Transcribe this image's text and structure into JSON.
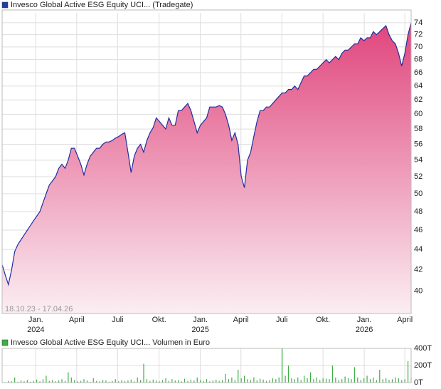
{
  "chart_data": [
    {
      "type": "area-line",
      "title": "Invesco Global Active ESG Equity UCI... (Tradegate)",
      "date_range": "18.10.23 - 17.04.26",
      "log_scale": true,
      "grid": true,
      "xlim": [
        0,
        130
      ],
      "ylim": [
        38,
        75.7
      ],
      "yticks": [
        40,
        42,
        44,
        46,
        48,
        50,
        52,
        54,
        56,
        58,
        60,
        62,
        64,
        66,
        68,
        70,
        72,
        74
      ],
      "xticks": [
        {
          "value": 10.7,
          "label": "Jan.",
          "sublabel": "2024"
        },
        {
          "value": 23.7,
          "label": "April"
        },
        {
          "value": 36.7,
          "label": "Juli"
        },
        {
          "value": 49.9,
          "label": "Okt."
        },
        {
          "value": 63.0,
          "label": "Jan.",
          "sublabel": "2025"
        },
        {
          "value": 75.9,
          "label": "April"
        },
        {
          "value": 88.9,
          "label": "Juli"
        },
        {
          "value": 102.0,
          "label": "Okt."
        },
        {
          "value": 115.1,
          "label": "Jan.",
          "sublabel": "2026"
        },
        {
          "value": 128.0,
          "label": "April"
        }
      ],
      "series": [
        {
          "color": "#1f2f9e",
          "fill_top": "#e0457c",
          "fill_bottom": "#fbeef3",
          "values": [
            42.5,
            41.5,
            40.6,
            42,
            43.8,
            44.5,
            45,
            45.5,
            46,
            46.5,
            47,
            47.5,
            48,
            49,
            50,
            51,
            51.5,
            52,
            53,
            53.5,
            53,
            54,
            55.5,
            55.5,
            54.5,
            53.5,
            52.2,
            53.5,
            54.5,
            55,
            55.5,
            55.5,
            56,
            56.3,
            56.3,
            56.5,
            56.8,
            57,
            57.3,
            57.5,
            55,
            52.5,
            54.5,
            55.5,
            56,
            55,
            56.5,
            57.5,
            58.2,
            59.5,
            59,
            58.5,
            58,
            59.5,
            58.5,
            58.5,
            60.5,
            60.5,
            61,
            61.5,
            60.5,
            59,
            57.5,
            58.5,
            59,
            59.5,
            61,
            61,
            61,
            61.2,
            61,
            60,
            58.5,
            56.5,
            57.5,
            56,
            52,
            50.7,
            54,
            55,
            57,
            59,
            60.5,
            60.5,
            61,
            61,
            61.5,
            62,
            62.5,
            63,
            63,
            63.5,
            63.5,
            64,
            63.5,
            64.5,
            65.5,
            65.5,
            66,
            66.5,
            66.5,
            67,
            67.5,
            68,
            67.5,
            68,
            68.5,
            68,
            69,
            69.5,
            69.5,
            70,
            70.5,
            70.5,
            71.5,
            71,
            71.5,
            71.5,
            72.5,
            72,
            72.5,
            73,
            73.5,
            72,
            71,
            70.5,
            69,
            67,
            69,
            72,
            74
          ]
        }
      ]
    },
    {
      "type": "volume-bar",
      "title": "Invesco Global Active ESG Equity UCI... Volumen in Euro",
      "grid": true,
      "xlim": [
        0,
        130
      ],
      "ylim": [
        0,
        400
      ],
      "yticks": [
        {
          "value": 0,
          "label": "0T"
        },
        {
          "value": 200,
          "label": "200T"
        },
        {
          "value": 400,
          "label": "400T"
        }
      ],
      "series": [
        {
          "color": "#3cb043",
          "values": [
            10,
            5,
            20,
            15,
            60,
            10,
            25,
            15,
            30,
            10,
            20,
            35,
            15,
            40,
            80,
            20,
            30,
            15,
            25,
            40,
            20,
            120,
            60,
            30,
            15,
            20,
            40,
            25,
            10,
            50,
            20,
            15,
            30,
            25,
            10,
            20,
            40,
            15,
            30,
            20,
            25,
            35,
            15,
            60,
            30,
            220,
            40,
            20,
            35,
            25,
            15,
            30,
            50,
            20,
            40,
            25,
            30,
            15,
            45,
            20,
            35,
            25,
            60,
            30,
            20,
            40,
            15,
            25,
            35,
            20,
            30,
            100,
            40,
            60,
            30,
            150,
            50,
            80,
            40,
            30,
            60,
            25,
            45,
            35,
            20,
            30,
            50,
            40,
            60,
            400,
            80,
            200,
            50,
            40,
            60,
            30,
            80,
            50,
            120,
            40,
            60,
            30,
            50,
            45,
            40,
            200,
            60,
            30,
            40,
            70,
            50,
            40,
            180,
            60,
            30,
            50,
            80,
            40,
            60,
            30,
            150,
            40,
            50,
            30,
            40,
            60,
            50,
            30,
            40,
            250,
            60
          ]
        }
      ]
    }
  ]
}
